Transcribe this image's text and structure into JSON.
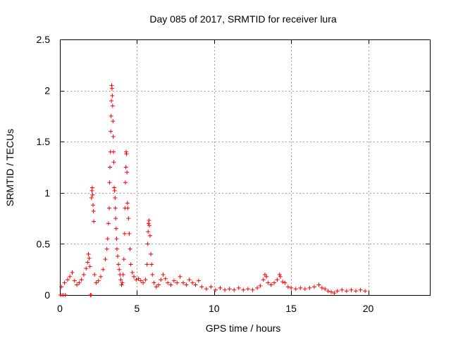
{
  "chart_data": {
    "type": "scatter",
    "title": "Day 085 of 2017, SRMTID for receiver lura",
    "xlabel": "GPS time / hours",
    "ylabel": "SRMTID / TECUs",
    "xlim": [
      0,
      24
    ],
    "ylim": [
      0,
      2.5
    ],
    "grid": true,
    "x_ticks": [
      0,
      5,
      10,
      15,
      20
    ],
    "x_tick_labels": [
      "0",
      "5",
      "10",
      "15",
      "20"
    ],
    "y_ticks": [
      0,
      0.5,
      1,
      1.5,
      2,
      2.5
    ],
    "y_tick_labels": [
      "0",
      "0.5",
      "1",
      "1.5",
      "2",
      "2.5"
    ],
    "marker": "+",
    "color": "#ff0000",
    "series": [
      {
        "name": "SRMTID",
        "points": [
          [
            0.05,
            0.0
          ],
          [
            0.2,
            0.0
          ],
          [
            0.35,
            0.0
          ],
          [
            0.1,
            0.08
          ],
          [
            0.3,
            0.12
          ],
          [
            0.5,
            0.15
          ],
          [
            0.65,
            0.18
          ],
          [
            0.8,
            0.22
          ],
          [
            0.95,
            0.14
          ],
          [
            1.1,
            0.1
          ],
          [
            1.25,
            0.12
          ],
          [
            1.4,
            0.15
          ],
          [
            1.55,
            0.2
          ],
          [
            1.7,
            0.26
          ],
          [
            1.8,
            0.32
          ],
          [
            1.85,
            0.4
          ],
          [
            1.9,
            0.36
          ],
          [
            1.95,
            0.28
          ],
          [
            1.98,
            0.0
          ],
          [
            2.02,
            0.0
          ],
          [
            2.05,
            0.95
          ],
          [
            2.08,
            1.02
          ],
          [
            2.1,
            1.05
          ],
          [
            2.12,
            0.98
          ],
          [
            2.15,
            0.88
          ],
          [
            2.18,
            0.82
          ],
          [
            2.2,
            0.72
          ],
          [
            2.25,
            0.2
          ],
          [
            2.35,
            0.12
          ],
          [
            2.5,
            0.14
          ],
          [
            2.65,
            0.18
          ],
          [
            2.8,
            0.25
          ],
          [
            2.95,
            0.35
          ],
          [
            3.05,
            0.45
          ],
          [
            3.1,
            0.55
          ],
          [
            3.15,
            0.7
          ],
          [
            3.2,
            0.85
          ],
          [
            3.22,
            1.1
          ],
          [
            3.25,
            1.25
          ],
          [
            3.28,
            1.4
          ],
          [
            3.3,
            1.6
          ],
          [
            3.32,
            1.75
          ],
          [
            3.34,
            1.9
          ],
          [
            3.36,
            2.05
          ],
          [
            3.38,
            2.02
          ],
          [
            3.4,
            1.95
          ],
          [
            3.42,
            1.85
          ],
          [
            3.44,
            1.7
          ],
          [
            3.46,
            1.55
          ],
          [
            3.48,
            1.4
          ],
          [
            3.5,
            1.3
          ],
          [
            3.52,
            1.05
          ],
          [
            3.55,
            1.02
          ],
          [
            3.58,
            0.95
          ],
          [
            3.6,
            0.85
          ],
          [
            3.62,
            0.75
          ],
          [
            3.65,
            0.65
          ],
          [
            3.68,
            0.55
          ],
          [
            3.7,
            0.45
          ],
          [
            3.75,
            0.38
          ],
          [
            3.8,
            0.3
          ],
          [
            3.85,
            0.25
          ],
          [
            3.9,
            0.2
          ],
          [
            3.95,
            0.15
          ],
          [
            4.0,
            0.1
          ],
          [
            4.05,
            0.12
          ],
          [
            4.1,
            0.2
          ],
          [
            4.15,
            0.35
          ],
          [
            4.2,
            0.6
          ],
          [
            4.22,
            0.85
          ],
          [
            4.25,
            1.1
          ],
          [
            4.28,
            1.25
          ],
          [
            4.3,
            1.4
          ],
          [
            4.32,
            1.38
          ],
          [
            4.35,
            1.2
          ],
          [
            4.38,
            0.9
          ],
          [
            4.4,
            0.85
          ],
          [
            4.45,
            0.75
          ],
          [
            4.5,
            0.6
          ],
          [
            4.55,
            0.45
          ],
          [
            4.6,
            0.3
          ],
          [
            4.7,
            0.22
          ],
          [
            4.8,
            0.18
          ],
          [
            4.95,
            0.15
          ],
          [
            5.1,
            0.16
          ],
          [
            5.25,
            0.14
          ],
          [
            5.4,
            0.12
          ],
          [
            5.55,
            0.15
          ],
          [
            5.65,
            0.3
          ],
          [
            5.7,
            0.5
          ],
          [
            5.72,
            0.62
          ],
          [
            5.75,
            0.7
          ],
          [
            5.78,
            0.73
          ],
          [
            5.8,
            0.68
          ],
          [
            5.85,
            0.58
          ],
          [
            5.9,
            0.4
          ],
          [
            5.95,
            0.3
          ],
          [
            6.0,
            0.2
          ],
          [
            6.1,
            0.12
          ],
          [
            6.25,
            0.08
          ],
          [
            6.4,
            0.1
          ],
          [
            6.55,
            0.15
          ],
          [
            6.7,
            0.2
          ],
          [
            6.85,
            0.16
          ],
          [
            7.0,
            0.12
          ],
          [
            7.2,
            0.1
          ],
          [
            7.4,
            0.14
          ],
          [
            7.6,
            0.12
          ],
          [
            7.8,
            0.18
          ],
          [
            8.0,
            0.12
          ],
          [
            8.2,
            0.1
          ],
          [
            8.4,
            0.15
          ],
          [
            8.6,
            0.12
          ],
          [
            8.8,
            0.1
          ],
          [
            9.0,
            0.14
          ],
          [
            9.2,
            0.08
          ],
          [
            9.5,
            0.06
          ],
          [
            9.8,
            0.08
          ],
          [
            10.1,
            0.05
          ],
          [
            10.4,
            0.07
          ],
          [
            10.7,
            0.05
          ],
          [
            11.0,
            0.06
          ],
          [
            11.3,
            0.05
          ],
          [
            11.6,
            0.07
          ],
          [
            11.9,
            0.05
          ],
          [
            12.2,
            0.06
          ],
          [
            12.5,
            0.05
          ],
          [
            12.8,
            0.07
          ],
          [
            13.0,
            0.09
          ],
          [
            13.2,
            0.15
          ],
          [
            13.3,
            0.2
          ],
          [
            13.4,
            0.18
          ],
          [
            13.5,
            0.12
          ],
          [
            13.7,
            0.1
          ],
          [
            13.9,
            0.12
          ],
          [
            14.1,
            0.15
          ],
          [
            14.25,
            0.2
          ],
          [
            14.3,
            0.18
          ],
          [
            14.45,
            0.13
          ],
          [
            14.6,
            0.12
          ],
          [
            14.8,
            0.08
          ],
          [
            15.0,
            0.07
          ],
          [
            15.3,
            0.06
          ],
          [
            15.6,
            0.07
          ],
          [
            15.9,
            0.06
          ],
          [
            16.2,
            0.07
          ],
          [
            16.5,
            0.08
          ],
          [
            16.8,
            0.1
          ],
          [
            17.0,
            0.07
          ],
          [
            17.2,
            0.06
          ],
          [
            17.4,
            0.04
          ],
          [
            17.6,
            0.03
          ],
          [
            17.8,
            0.02
          ],
          [
            18.0,
            0.04
          ],
          [
            18.3,
            0.05
          ],
          [
            18.6,
            0.04
          ],
          [
            18.9,
            0.05
          ],
          [
            19.2,
            0.04
          ],
          [
            19.5,
            0.05
          ],
          [
            19.8,
            0.04
          ]
        ]
      }
    ]
  }
}
